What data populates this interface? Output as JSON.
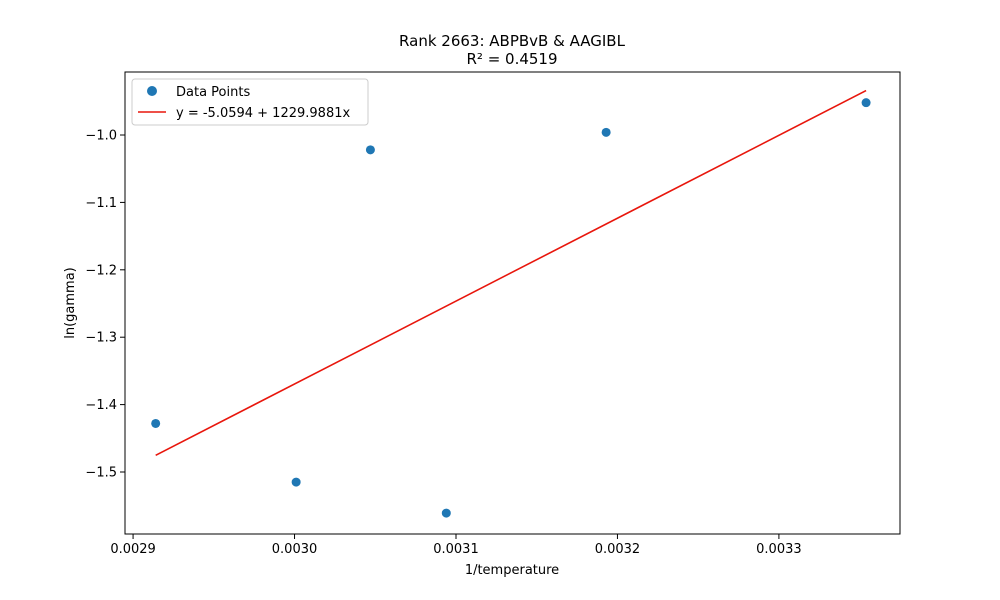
{
  "chart_data": {
    "type": "scatter",
    "title": "Rank 2663: ABPBvB & AAGIBL",
    "subtitle": "R² = 0.4519",
    "xlabel": "1/temperature",
    "ylabel": "ln(gamma)",
    "xlim": [
      0.002895,
      0.003375
    ],
    "ylim": [
      -1.592,
      -0.0
    ],
    "xticks": [
      0.0029,
      0.003,
      0.0031,
      0.0032,
      0.0033
    ],
    "xtick_labels": [
      "0.0029",
      "0.0030",
      "0.0031",
      "0.0032",
      "0.0033"
    ],
    "yticks": [
      -1.5,
      -1.4,
      -1.3,
      -1.2,
      -1.1,
      -1.0
    ],
    "ytick_labels": [
      "−1.5",
      "−1.4",
      "−1.3",
      "−1.2",
      "−1.1",
      "−1.0"
    ],
    "grid": false,
    "legend_position": "top-left",
    "series": [
      {
        "name": "Data Points",
        "kind": "scatter",
        "color": "#1f77b4",
        "points": [
          {
            "x": 0.002914,
            "y": -1.428
          },
          {
            "x": 0.003001,
            "y": -1.515
          },
          {
            "x": 0.003047,
            "y": -1.022
          },
          {
            "x": 0.003094,
            "y": -1.561
          },
          {
            "x": 0.003193,
            "y": -0.996
          },
          {
            "x": 0.003354,
            "y": -0.952
          }
        ]
      },
      {
        "name": "y = -5.0594 + 1229.9881x",
        "kind": "line",
        "color": "#e8160c",
        "intercept": -5.0594,
        "slope": 1229.9881,
        "x_range": [
          0.002914,
          0.003354
        ]
      }
    ]
  }
}
